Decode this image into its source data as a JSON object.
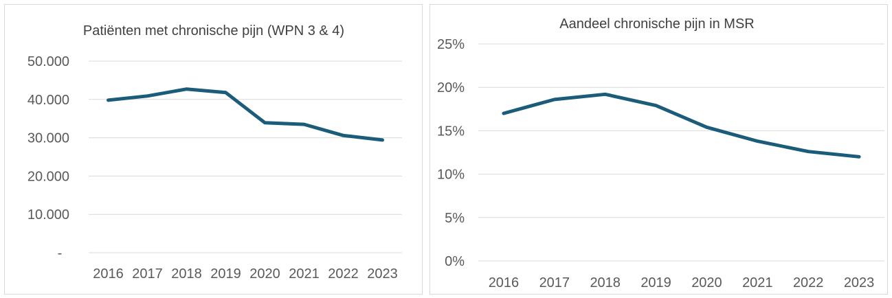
{
  "chart_data": [
    {
      "type": "line",
      "title": "Patiënten met chronische pijn (WPN 3 & 4)",
      "xlabel": "",
      "ylabel": "",
      "categories": [
        "2016",
        "2017",
        "2018",
        "2019",
        "2020",
        "2021",
        "2022",
        "2023"
      ],
      "series": [
        {
          "values": [
            39800,
            40900,
            42700,
            41800,
            33900,
            33500,
            30600,
            29400
          ]
        }
      ],
      "ylim": [
        0,
        50000
      ],
      "y_ticks": [
        {
          "value": 0,
          "label": "-"
        },
        {
          "value": 10000,
          "label": "10.000"
        },
        {
          "value": 20000,
          "label": "20.000"
        },
        {
          "value": 30000,
          "label": "30.000"
        },
        {
          "value": 40000,
          "label": "40.000"
        },
        {
          "value": 50000,
          "label": "50.000"
        }
      ],
      "grid": true,
      "legend": "none",
      "line_color": "#1b5c7a"
    },
    {
      "type": "line",
      "title": "Aandeel chronische pijn in MSR",
      "xlabel": "",
      "ylabel": "",
      "categories": [
        "2016",
        "2017",
        "2018",
        "2019",
        "2020",
        "2021",
        "2022",
        "2023"
      ],
      "series": [
        {
          "values": [
            0.17,
            0.186,
            0.192,
            0.179,
            0.154,
            0.138,
            0.126,
            0.12
          ]
        }
      ],
      "ylim": [
        0,
        0.25
      ],
      "y_ticks": [
        {
          "value": 0,
          "label": "0%"
        },
        {
          "value": 0.05,
          "label": "5%"
        },
        {
          "value": 0.1,
          "label": "10%"
        },
        {
          "value": 0.15,
          "label": "15%"
        },
        {
          "value": 0.2,
          "label": "20%"
        },
        {
          "value": 0.25,
          "label": "25%"
        }
      ],
      "grid": true,
      "legend": "none",
      "line_color": "#1b5c7a"
    }
  ]
}
